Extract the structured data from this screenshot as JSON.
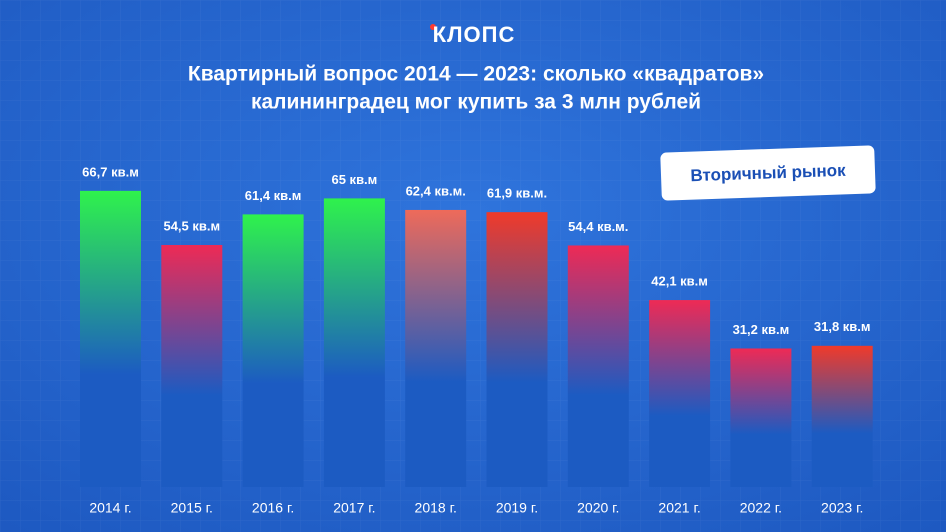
{
  "logo": "КЛОПС",
  "badge": "Вторичный рынок",
  "chart_data": {
    "type": "bar",
    "title_lines": [
      "Квартирный вопрос 2014 — 2023: сколько «квадратов»",
      "калининградец мог купить за 3 млн рублей"
    ],
    "categories": [
      "2014 г.",
      "2015 г.",
      "2016 г.",
      "2017 г.",
      "2018 г.",
      "2019 г.",
      "2020 г.",
      "2021 г.",
      "2022 г.",
      "2023 г."
    ],
    "values": [
      66.7,
      54.5,
      61.4,
      65,
      62.4,
      61.9,
      54.4,
      42.1,
      31.2,
      31.8
    ],
    "value_labels": [
      "66,7 кв.м",
      "54,5 кв.м",
      "61,4 кв.м",
      "65 кв.м",
      "62,4 кв.м.",
      "61,9 кв.м.",
      "54,4 кв.м.",
      "42,1 кв.м",
      "31,2 кв.м",
      "31,8 кв.м"
    ],
    "colors": [
      "#2ff24c",
      "#ee2a55",
      "#2ff24c",
      "#2ff24c",
      "#ee6a5a",
      "#f03a2a",
      "#ee2a55",
      "#ee2a55",
      "#ee2a55",
      "#f03a2a"
    ],
    "base_color": "#1c5bc2"
  }
}
